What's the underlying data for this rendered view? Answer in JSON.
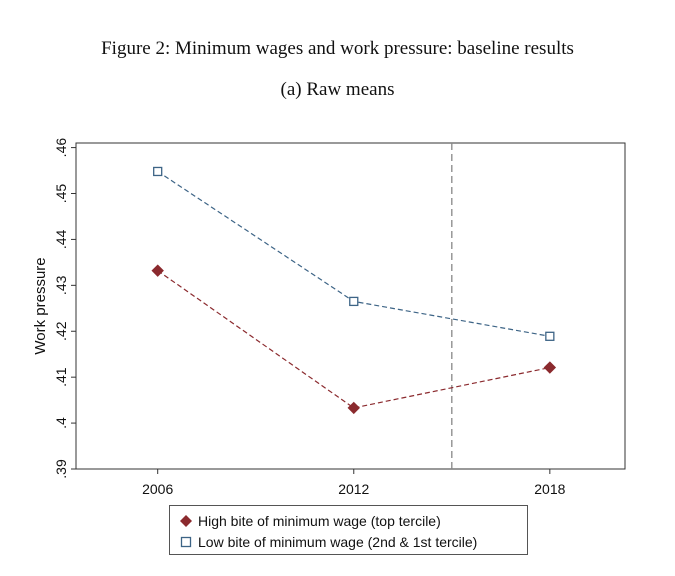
{
  "figure": {
    "title": "Figure 2: Minimum wages and work pressure: baseline results",
    "subtitle": "(a) Raw means"
  },
  "chart_data": {
    "type": "line",
    "xlabel": "",
    "ylabel": "Work pressure",
    "x": [
      2006,
      2012,
      2018
    ],
    "x_tick_labels": [
      "2006",
      "2012",
      "2018"
    ],
    "xlim": [
      2003.5,
      2020.3
    ],
    "ylim": [
      0.39,
      0.461
    ],
    "y_ticks": [
      0.39,
      0.4,
      0.41,
      0.42,
      0.43,
      0.44,
      0.45,
      0.46
    ],
    "y_tick_labels": [
      ".39",
      ".4",
      ".41",
      ".42",
      ".43",
      ".44",
      ".45",
      ".46"
    ],
    "vertical_reference_line": {
      "x": 2015,
      "style": "dashed",
      "color": "#888888"
    },
    "series": [
      {
        "name": "High bite of minimum wage (top tercile)",
        "values": [
          0.4332,
          0.4033,
          0.4121
        ],
        "marker": "filled-diamond",
        "color": "#8b2a2e"
      },
      {
        "name": "Low bite of minimum wage (2nd & 1st tercile)",
        "values": [
          0.4548,
          0.4265,
          0.4189
        ],
        "marker": "hollow-square",
        "color": "#3d6486"
      }
    ],
    "legend_position": "bottom"
  }
}
